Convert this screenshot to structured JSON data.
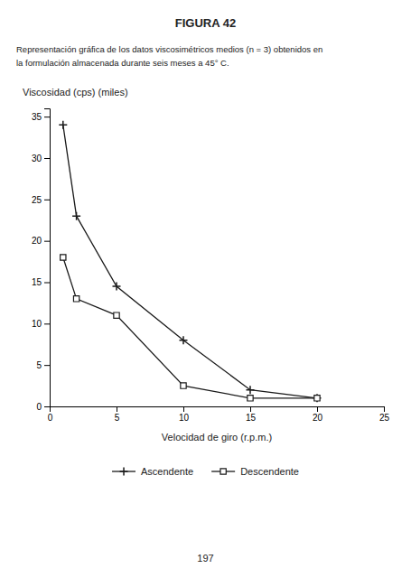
{
  "chart_data": {
    "type": "line",
    "title": "FIGURA 42",
    "subtitle": [
      "Representación gráfica de los datos viscosimétricos medios (n = 3) obtenidos en",
      "la formulación almacenada durante seis meses a 45° C."
    ],
    "annotations": [
      "197"
    ],
    "xlabel": "Velocidad de giro (r.p.m.)",
    "ylabel": "Viscosidad (cps) (miles)",
    "x": [
      1,
      2,
      5,
      10,
      15,
      20
    ],
    "series": [
      {
        "name": "Ascendente",
        "color": "#1a1a1a",
        "marker": "plus",
        "line_style": "solid",
        "values": [
          34,
          23,
          14.5,
          8,
          2,
          1
        ]
      },
      {
        "name": "Descendente",
        "color": "#1a1a1a",
        "marker": "square",
        "line_style": "solid",
        "values": [
          18,
          13,
          11,
          2.5,
          1,
          1
        ]
      }
    ],
    "xlim": [
      0,
      25
    ],
    "ylim": [
      0,
      36
    ],
    "xticks": [
      0,
      5,
      10,
      15,
      20,
      25
    ],
    "yticks": [
      0,
      5,
      10,
      15,
      20,
      25,
      30,
      35
    ],
    "grid": false,
    "legend": "bottom"
  }
}
